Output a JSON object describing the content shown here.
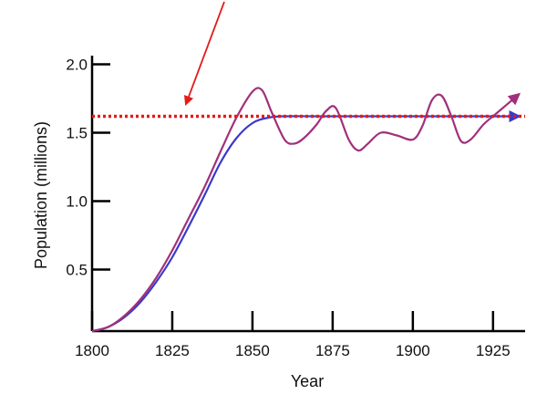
{
  "chart_data": {
    "type": "line",
    "title": "",
    "xlabel": "Year",
    "ylabel": "Population (millions)",
    "xlim": [
      1800,
      1935
    ],
    "ylim": [
      0.05,
      2.05
    ],
    "x_ticks": [
      1800,
      1825,
      1850,
      1875,
      1900,
      1925
    ],
    "x_tick_labels": [
      "1800",
      "1825",
      "1850",
      "1875",
      "1900",
      "1925"
    ],
    "y_ticks": [
      0.5,
      1.0,
      1.5,
      2.0
    ],
    "y_tick_labels": [
      "0.5",
      "1.0",
      "1.5",
      "2.0"
    ],
    "grid": false,
    "legend": "none",
    "reference_line": {
      "value": 1.62,
      "style": "dotted",
      "color": "#e31b1b"
    },
    "series": [
      {
        "color": "#3a3ac9",
        "x": [
          1800,
          1805,
          1810,
          1815,
          1820,
          1825,
          1830,
          1835,
          1840,
          1845,
          1850,
          1855,
          1860,
          1870,
          1880,
          1890,
          1900,
          1910,
          1920,
          1928,
          1933
        ],
        "y": [
          0.05,
          0.08,
          0.15,
          0.26,
          0.41,
          0.59,
          0.81,
          1.04,
          1.28,
          1.46,
          1.57,
          1.61,
          1.62,
          1.62,
          1.62,
          1.62,
          1.62,
          1.62,
          1.62,
          1.62,
          1.62
        ]
      },
      {
        "color": "#a0307c",
        "x": [
          1800,
          1805,
          1810,
          1815,
          1820,
          1825,
          1830,
          1835,
          1840,
          1845,
          1850,
          1853,
          1856,
          1860,
          1863,
          1866,
          1870,
          1873,
          1876,
          1880,
          1883,
          1886,
          1890,
          1895,
          1900,
          1903,
          1906,
          1909,
          1912,
          1915,
          1918,
          1922,
          1926,
          1933
        ],
        "y": [
          0.05,
          0.08,
          0.16,
          0.28,
          0.44,
          0.64,
          0.87,
          1.1,
          1.36,
          1.61,
          1.8,
          1.81,
          1.65,
          1.45,
          1.42,
          1.46,
          1.56,
          1.66,
          1.68,
          1.45,
          1.37,
          1.42,
          1.5,
          1.48,
          1.45,
          1.55,
          1.74,
          1.77,
          1.62,
          1.44,
          1.45,
          1.56,
          1.64,
          1.78
        ]
      }
    ]
  },
  "annotation_arrow": {
    "color": "#e31b1b"
  }
}
